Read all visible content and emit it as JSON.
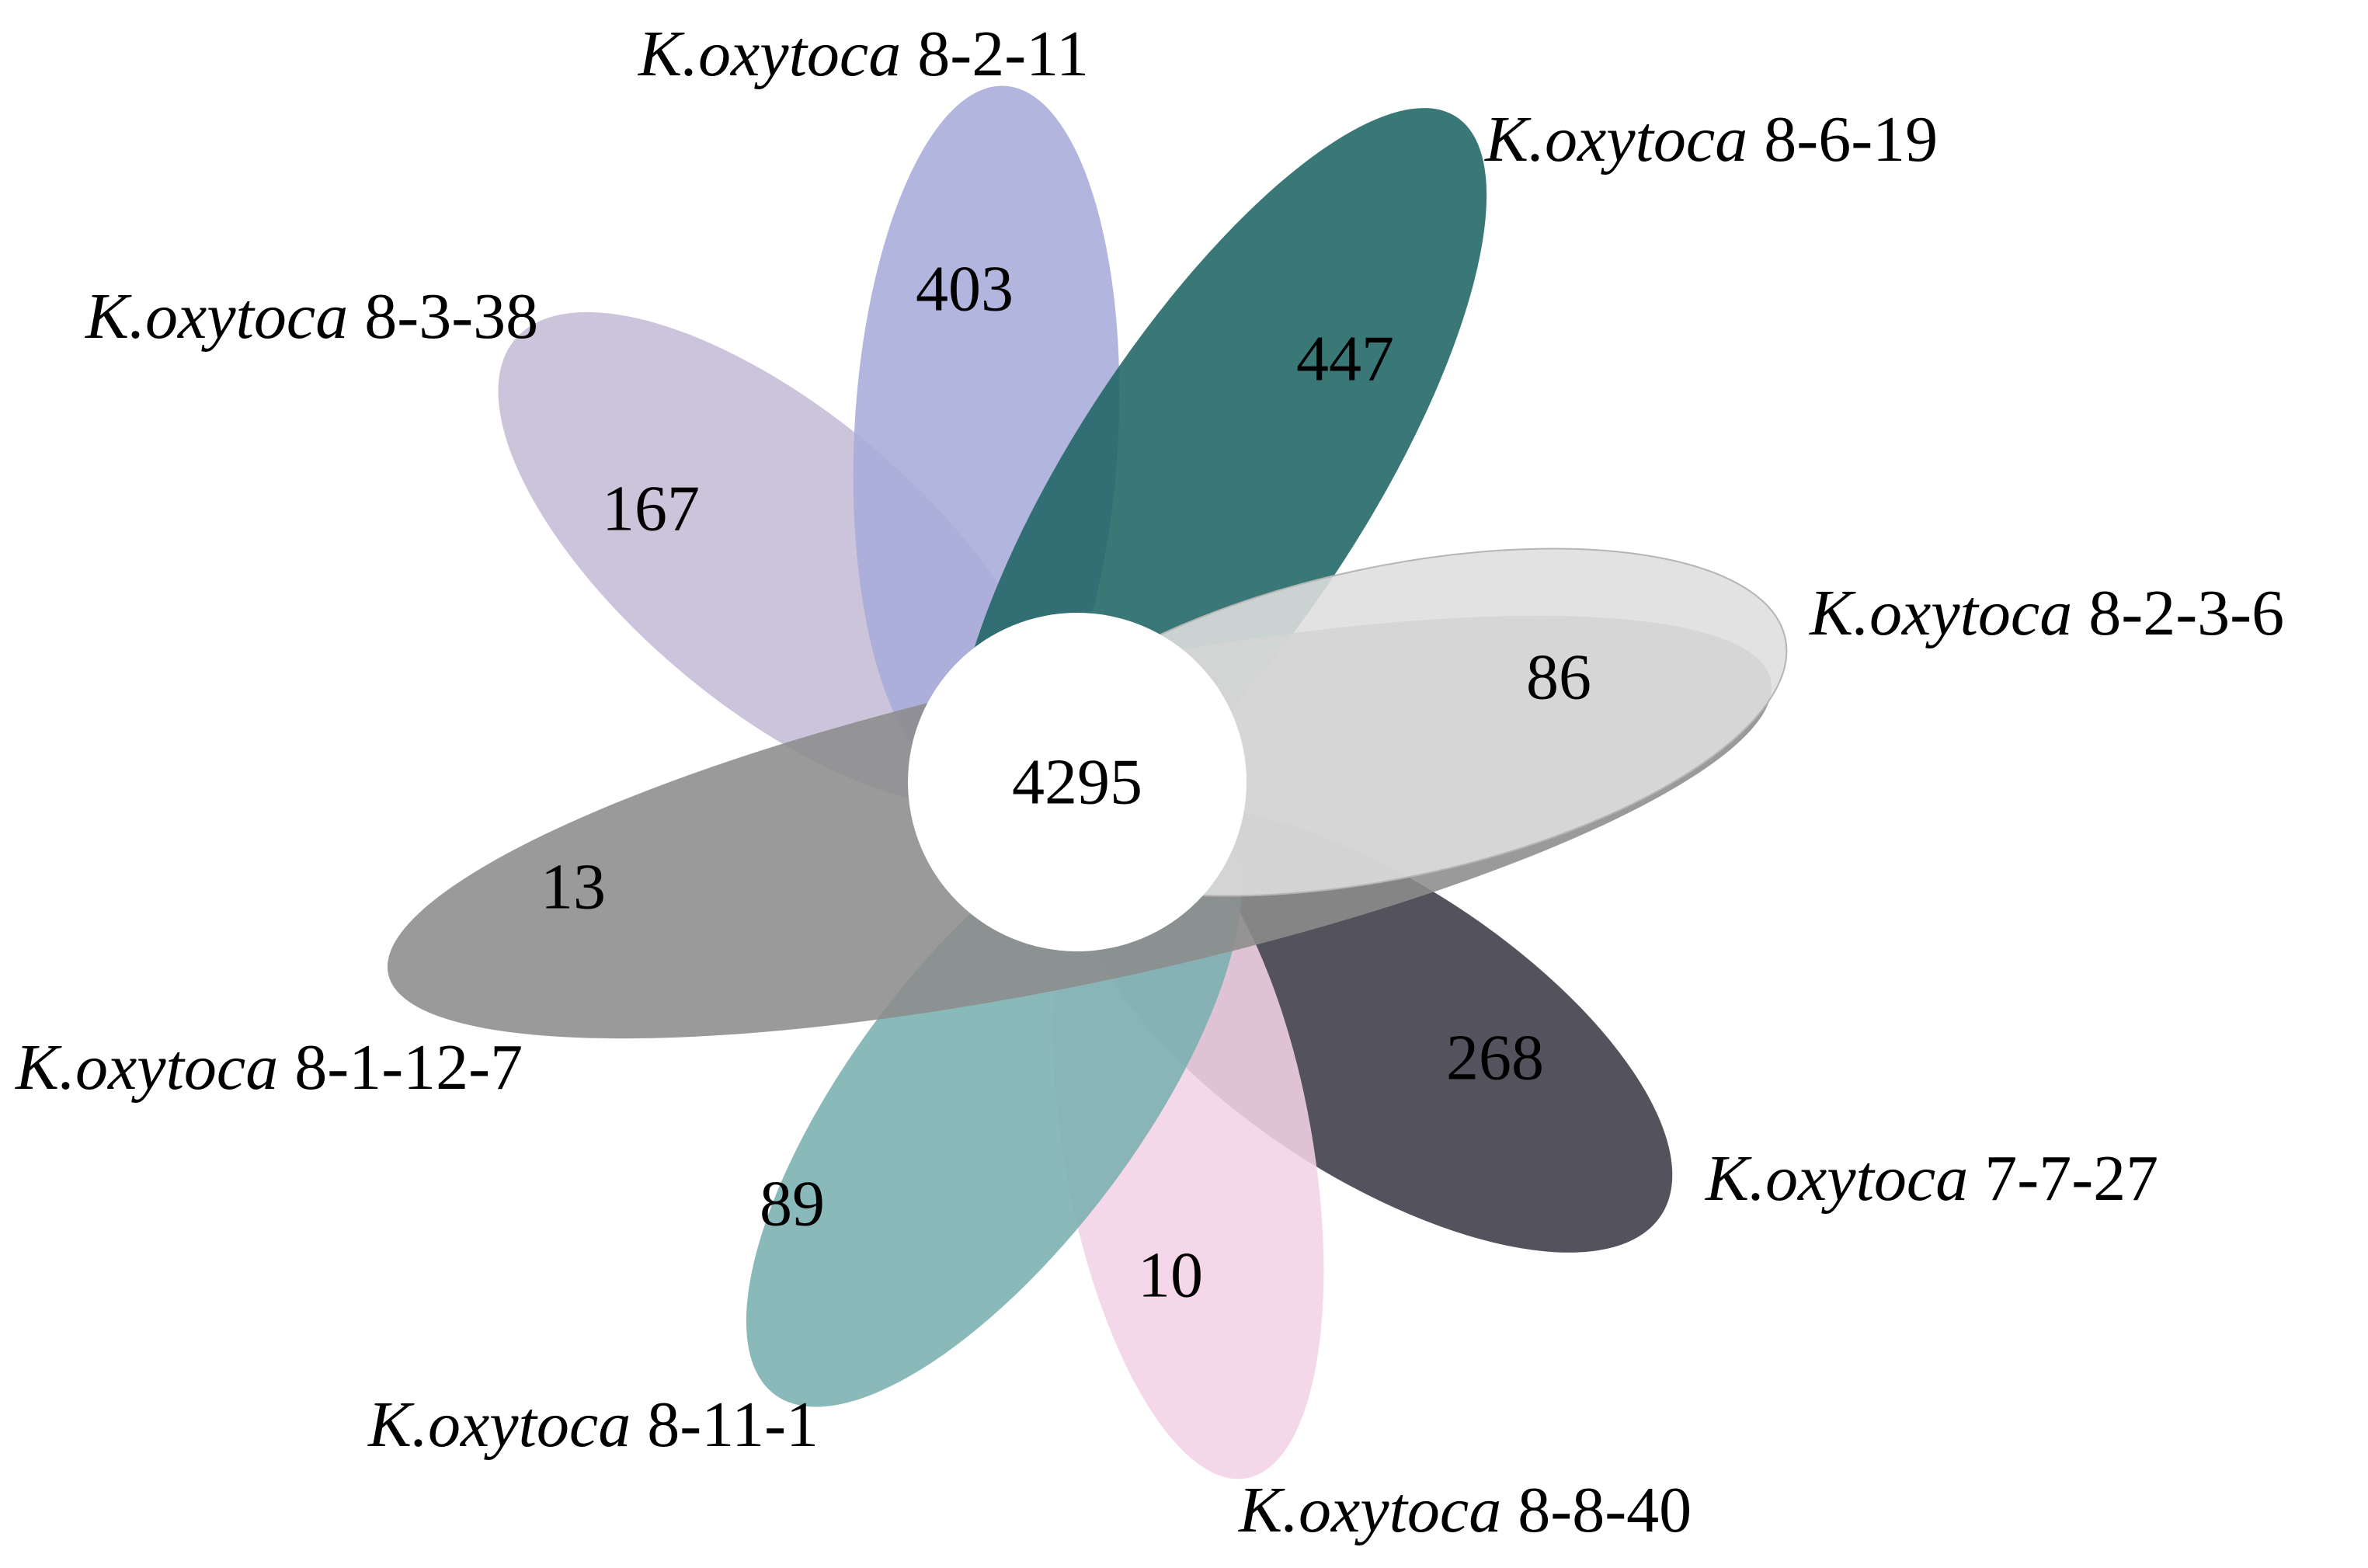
{
  "diagram": {
    "type": "flower-venn",
    "core": {
      "count": "4295"
    },
    "petals": [
      {
        "id": "p8-3-38",
        "genus": "K.oxytoca",
        "strain": "8-3-38",
        "unique": "167",
        "color": "#c5bcd6"
      },
      {
        "id": "p8-2-11",
        "genus": "K.oxytoca",
        "strain": "8-2-11",
        "unique": "403",
        "color": "#a7acda"
      },
      {
        "id": "p8-6-19",
        "genus": "K.oxytoca",
        "strain": "8-6-19",
        "unique": "447",
        "color": "#1f6565"
      },
      {
        "id": "p8-2-3-6",
        "genus": "K.oxytoca",
        "strain": "8-2-3-6",
        "unique": "86",
        "color": "#dedede"
      },
      {
        "id": "p7-7-27",
        "genus": "K.oxytoca",
        "strain": "7-7-27",
        "unique": "268",
        "color": "#3c3a47"
      },
      {
        "id": "p8-8-40",
        "genus": "K.oxytoca",
        "strain": "8-8-40",
        "unique": "10",
        "color": "#f2d3e6"
      },
      {
        "id": "p8-11-1",
        "genus": "K.oxytoca",
        "strain": "8-11-1",
        "unique": "89",
        "color": "#7aafb0"
      },
      {
        "id": "p8-1-12-7",
        "genus": "K.oxytoca",
        "strain": "8-1-12-7",
        "unique": "13",
        "color": "#8c8c8c"
      }
    ]
  }
}
